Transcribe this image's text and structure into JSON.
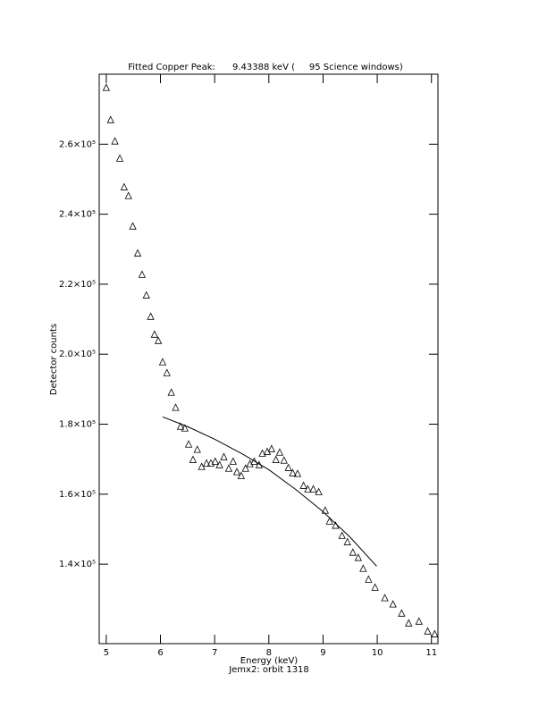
{
  "chart_data": {
    "type": "scatter",
    "title": "Fitted Copper Peak:      9.43388 keV (     95 Science windows)",
    "subtitle": "Jemx2: orbit 1318",
    "x_label": "Energy (keV)",
    "y_label": "Detector counts",
    "xlim": [
      4.87,
      11.12
    ],
    "ylim": [
      117300,
      280000
    ],
    "xticks": [
      5,
      6,
      7,
      8,
      9,
      10,
      11
    ],
    "yticks": [
      {
        "value": 140000,
        "label": "1.4×10⁵"
      },
      {
        "value": 160000,
        "label": "1.6×10⁵"
      },
      {
        "value": 180000,
        "label": "1.8×10⁵"
      },
      {
        "value": 200000,
        "label": "2.0×10⁵"
      },
      {
        "value": 220000,
        "label": "2.2×10⁵"
      },
      {
        "value": 240000,
        "label": "2.4×10⁵"
      },
      {
        "value": 260000,
        "label": "2.6×10⁵"
      }
    ],
    "color": "#000000",
    "series": [
      {
        "type": "scatter",
        "marker": "triangle",
        "x": [
          5.0,
          5.08,
          5.16,
          5.25,
          5.33,
          5.41,
          5.49,
          5.58,
          5.66,
          5.74,
          5.82,
          5.89,
          5.96,
          6.04,
          6.12,
          6.2,
          6.28,
          6.37,
          6.45,
          6.52,
          6.6,
          6.68,
          6.76,
          6.85,
          6.93,
          7.01,
          7.09,
          7.17,
          7.26,
          7.34,
          7.41,
          7.49,
          7.57,
          7.65,
          7.73,
          7.82,
          7.88,
          7.97,
          8.05,
          8.13,
          8.2,
          8.28,
          8.36,
          8.44,
          8.53,
          8.64,
          8.72,
          8.82,
          8.92,
          9.04,
          9.12,
          9.23,
          9.35,
          9.45,
          9.55,
          9.65,
          9.74,
          9.84,
          9.96,
          10.14,
          10.29,
          10.45,
          10.58,
          10.77,
          10.93,
          11.06
        ],
        "values": [
          276100,
          266900,
          260800,
          255900,
          247700,
          245200,
          236500,
          228800,
          222700,
          216800,
          210700,
          205600,
          203800,
          197700,
          194600,
          189000,
          184700,
          179300,
          178800,
          174200,
          169800,
          172700,
          167800,
          168800,
          168800,
          169300,
          168300,
          170600,
          167300,
          169300,
          166300,
          165200,
          167300,
          168600,
          169300,
          168300,
          171600,
          172100,
          172900,
          169800,
          171900,
          169600,
          167500,
          166000,
          165800,
          162400,
          161400,
          161400,
          160600,
          155300,
          152200,
          151000,
          148100,
          146300,
          143300,
          141800,
          138700,
          135600,
          133300,
          130300,
          128500,
          125900,
          123100,
          123600,
          120800,
          120000
        ]
      },
      {
        "type": "line",
        "x": [
          6.04,
          6.5,
          7.0,
          7.5,
          8.0,
          8.5,
          9.0,
          9.5,
          9.99
        ],
        "values": [
          182100,
          179300,
          175700,
          171600,
          167000,
          161300,
          155000,
          147700,
          139400
        ]
      }
    ]
  }
}
